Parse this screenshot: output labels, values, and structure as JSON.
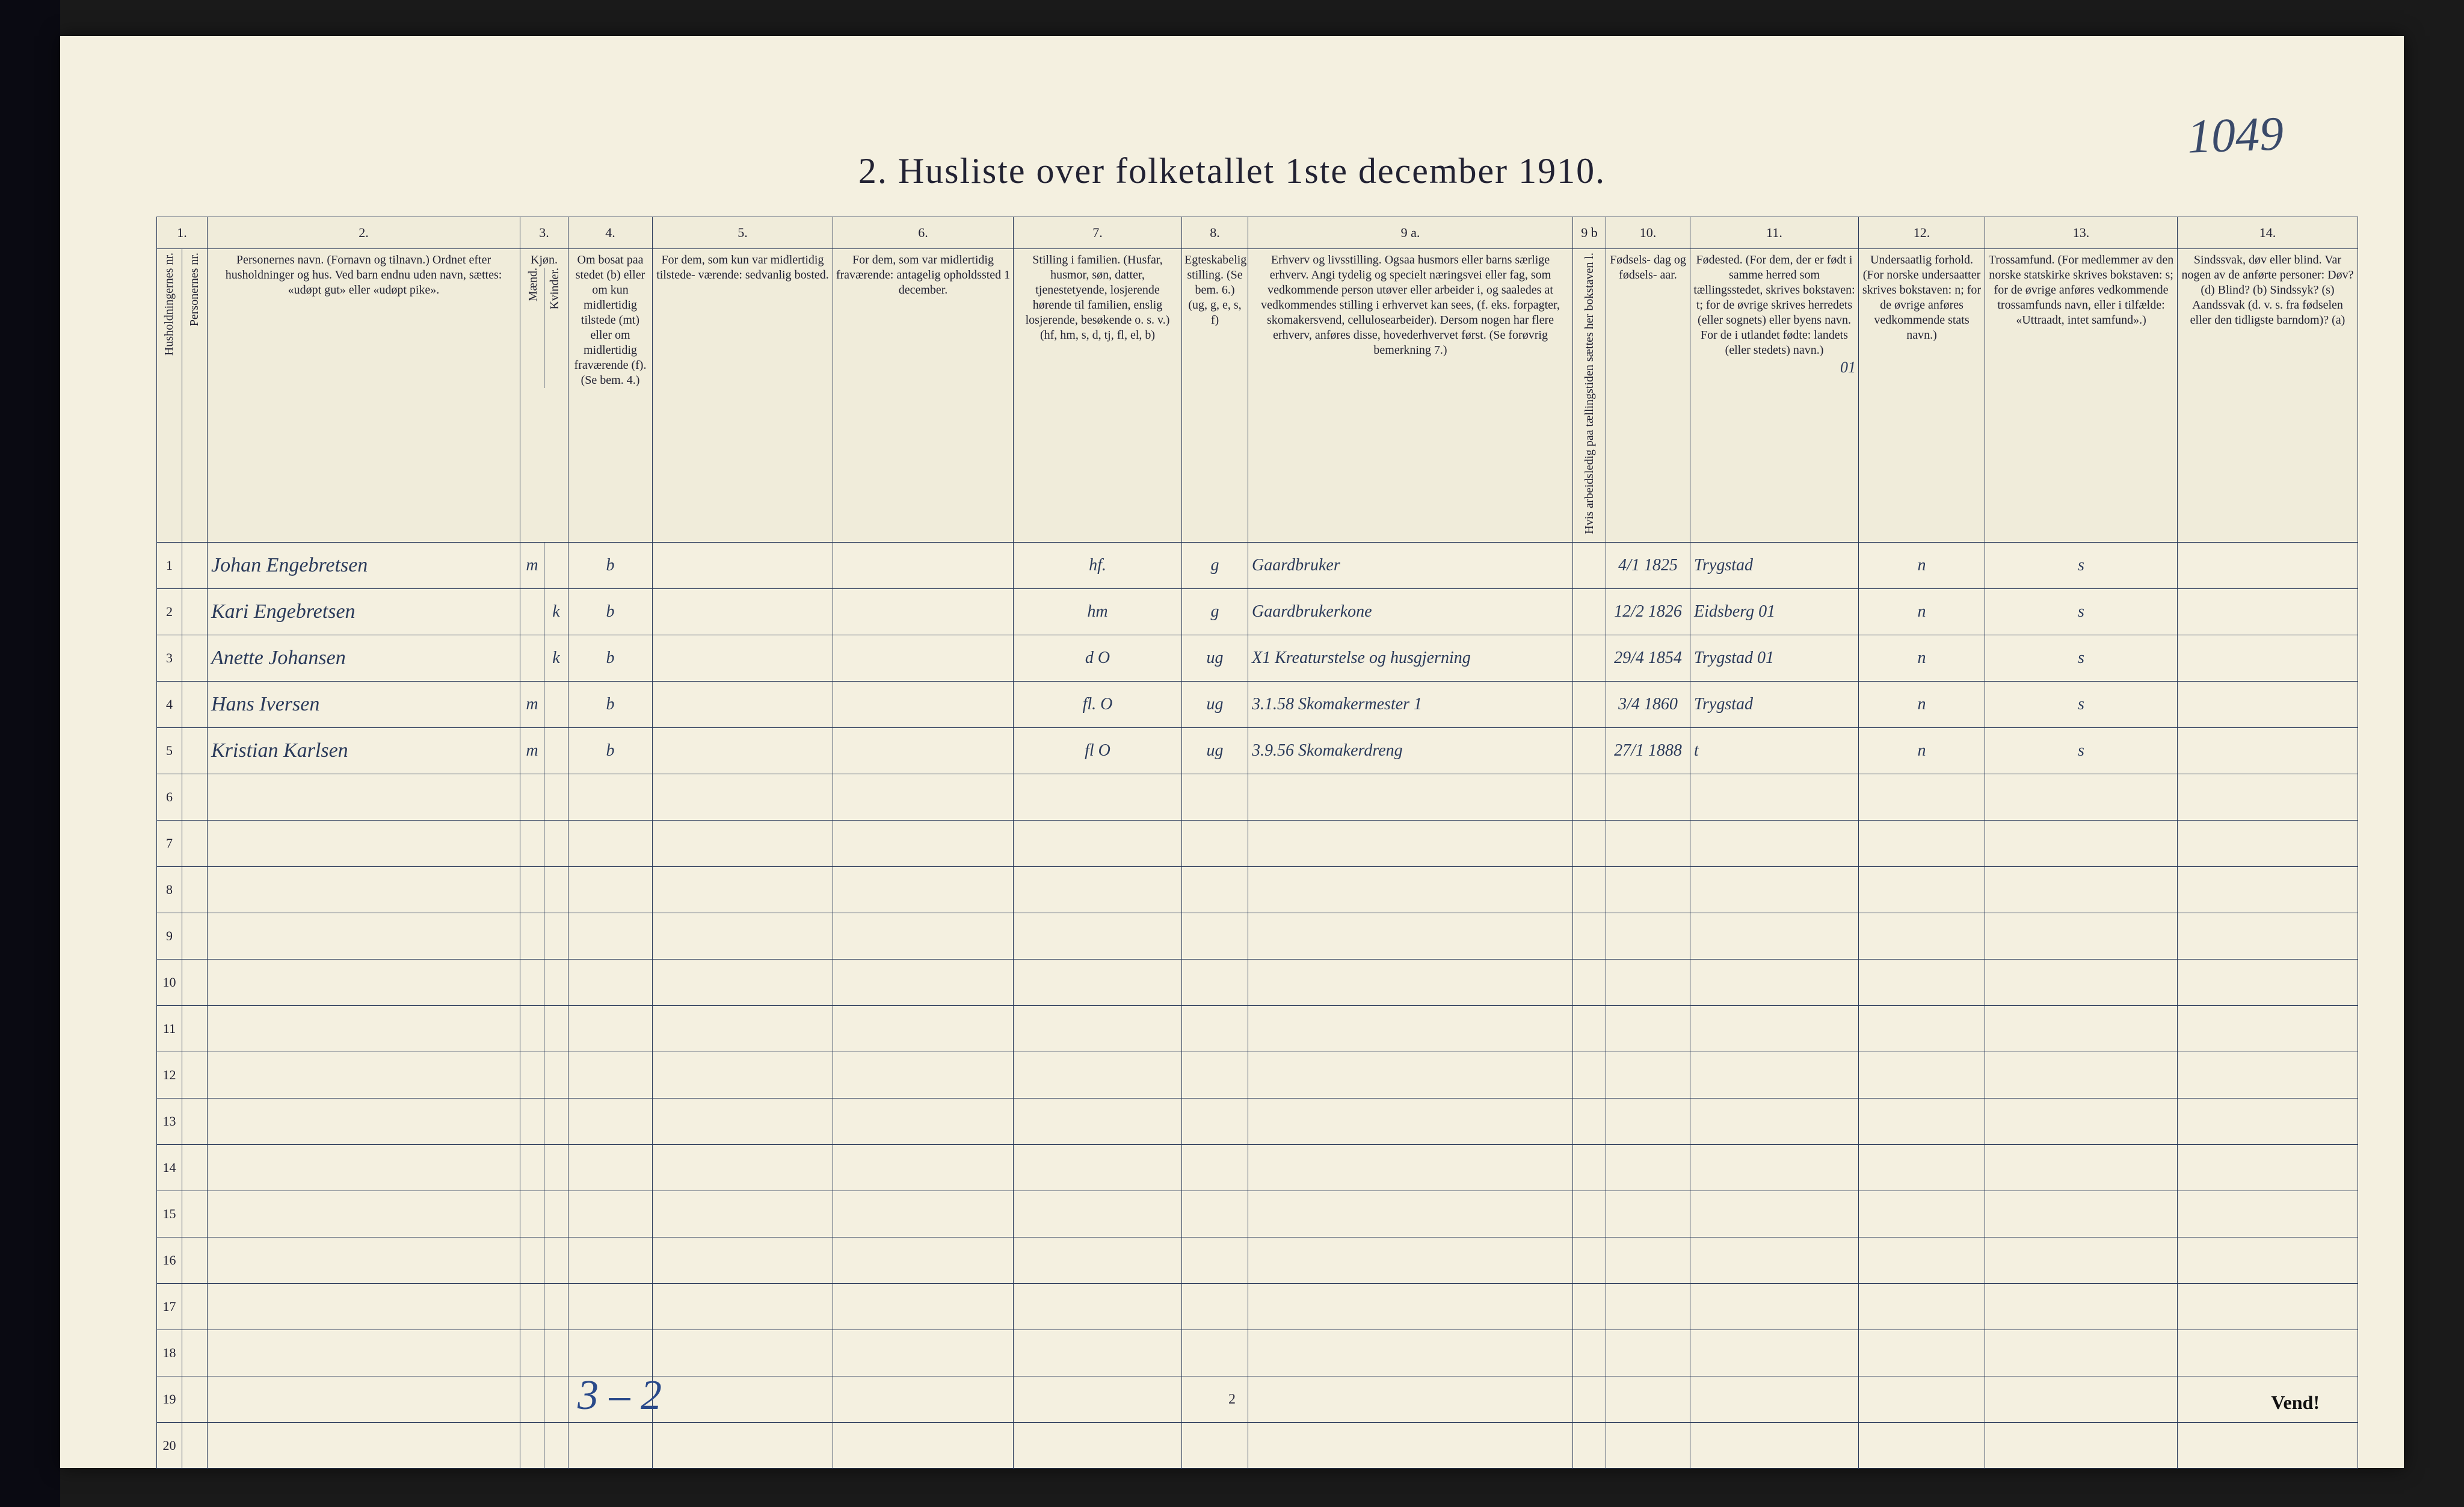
{
  "page_number_hand": "1049",
  "title": "2.  Husliste over folketallet 1ste december 1910.",
  "footer_hand": "3 – 2",
  "footer_pagenum": "2",
  "vend": "Vend!",
  "colors": {
    "paper": "#f4f0e0",
    "rule": "#2a3a5a",
    "ink_print": "#223344",
    "ink_hand": "#2a3a5a",
    "ink_hand_blue": "#2a4a8a",
    "outer_bg": "#1a1a1a"
  },
  "typography": {
    "title_fontsize_pt": 45,
    "header_fontsize_pt": 15,
    "body_hand_fontsize_pt": 26
  },
  "table": {
    "col_numbers": [
      "1.",
      "",
      "2.",
      "3.",
      "",
      "4.",
      "5.",
      "6.",
      "7.",
      "8.",
      "9 a.",
      "9 b",
      "10.",
      "11.",
      "12.",
      "13.",
      "14."
    ],
    "headers": {
      "hnr": "Husholdningernes nr.",
      "pnr": "Personernes nr.",
      "name": "Personernes navn.\n(Fornavn og tilnavn.)\nOrdnet efter husholdninger og hus.\nVed barn endnu uden navn, sættes: «udøpt gut» eller «udøpt pike».",
      "sex": "Kjøn.",
      "sex_m": "Mænd.",
      "sex_k": "Kvinder.",
      "bosat": "Om bosat paa stedet (b) eller om kun midlertidig tilstede (mt) eller om midlertidig fraværende (f). (Se bem. 4.)",
      "mt": "For dem, som kun var\nmidlertidig tilstede-\nværende:\nsedvanlig bosted.",
      "mf": "For dem, som var\nmidlertidig\nfraværende:\nantagelig opholdssted 1 december.",
      "stilling": "Stilling i familien.\n(Husfar, husmor, søn, datter, tjenestetyende, losjerende hørende til familien, enslig losjerende, besøkende o. s. v.)\n(hf, hm, s, d, tj, fl, el, b)",
      "egte": "Egteskabelig stilling.\n(Se bem. 6.)\n(ug, g, e, s, f)",
      "erhverv": "Erhverv og livsstilling.\nOgsaa husmors eller barns særlige erhverv.\nAngi tydelig og specielt næringsvei eller fag, som vedkommende person utøver eller arbeider i, og saaledes at vedkommendes stilling i erhvervet kan sees, (f. eks. forpagter, skomakersvend, cellulosearbeider). Dersom nogen har flere erhverv, anføres disse, hovederhvervet først.\n(Se forøvrig bemerkning 7.)",
      "b9b": "Hvis arbeidsledig paa tællingstiden sættes her bokstaven l.",
      "fdag": "Fødsels-\ndag\nog\nfødsels-\naar.",
      "fsted": "Fødested.\n(For dem, der er født i samme herred som tællingsstedet, skrives bokstaven: t; for de øvrige skrives herredets (eller sognets) eller byens navn. For de i utlandet fødte: landets (eller stedets) navn.)",
      "under": "Undersaatlig forhold.\n(For norske undersaatter skrives bokstaven: n; for de øvrige anføres vedkommende stats navn.)",
      "tros": "Trossamfund.\n(For medlemmer av den norske statskirke skrives bokstaven: s; for de øvrige anføres vedkommende trossamfunds navn, eller i tilfælde: «Uttraadt, intet samfund».)",
      "sind": "Sindssvak, døv eller blind.\nVar nogen av de anførte personer:\nDøv? (d)\nBlind? (b)\nSindssyk? (s)\nAandssvak (d. v. s. fra fødselen eller den tidligste barndom)? (a)"
    },
    "header_note_01": "01",
    "rows": [
      {
        "hnr": "1",
        "pnr": "",
        "name": "Johan Engebretsen",
        "sex_m": "m",
        "sex_k": "",
        "bosat": "b",
        "mt": "",
        "mf": "",
        "stilling": "hf.",
        "egte": "g",
        "erhverv": "Gaardbruker",
        "b9b": "",
        "fdag": "4/1 1825",
        "fsted": "Trygstad",
        "under": "n",
        "tros": "s",
        "sind": ""
      },
      {
        "hnr": "2",
        "pnr": "",
        "name": "Kari Engebretsen",
        "sex_m": "",
        "sex_k": "k",
        "bosat": "b",
        "mt": "",
        "mf": "",
        "stilling": "hm",
        "egte": "g",
        "erhverv": "Gaardbrukerkone",
        "b9b": "",
        "fdag": "12/2 1826",
        "fsted": "Eidsberg  01",
        "under": "n",
        "tros": "s",
        "sind": ""
      },
      {
        "hnr": "3",
        "pnr": "",
        "name": "Anette Johansen",
        "sex_m": "",
        "sex_k": "k",
        "bosat": "b",
        "mt": "",
        "mf": "",
        "stilling": "d    O",
        "egte": "ug",
        "erhverv": "X1 Kreaturstelse og husgjerning",
        "b9b": "",
        "fdag": "29/4 1854",
        "fsted": "Trygstad  01",
        "under": "n",
        "tros": "s",
        "sind": ""
      },
      {
        "hnr": "4",
        "pnr": "",
        "name": "Hans Iversen",
        "sex_m": "m",
        "sex_k": "",
        "bosat": "b",
        "mt": "",
        "mf": "",
        "stilling": "fl.   O",
        "egte": "ug",
        "erhverv": "3.1.58 Skomakermester 1",
        "b9b": "",
        "fdag": "3/4 1860",
        "fsted": "Trygstad",
        "under": "n",
        "tros": "s",
        "sind": ""
      },
      {
        "hnr": "5",
        "pnr": "",
        "name": "Kristian Karlsen",
        "sex_m": "m",
        "sex_k": "",
        "bosat": "b",
        "mt": "",
        "mf": "",
        "stilling": "fl    O",
        "egte": "ug",
        "erhverv": "3.9.56 Skomakerdreng",
        "b9b": "",
        "fdag": "27/1 1888",
        "fsted": "t",
        "under": "n",
        "tros": "s",
        "sind": ""
      },
      {
        "hnr": "6",
        "pnr": "",
        "name": "",
        "sex_m": "",
        "sex_k": "",
        "bosat": "",
        "mt": "",
        "mf": "",
        "stilling": "",
        "egte": "",
        "erhverv": "",
        "b9b": "",
        "fdag": "",
        "fsted": "",
        "under": "",
        "tros": "",
        "sind": ""
      },
      {
        "hnr": "7",
        "pnr": "",
        "name": "",
        "sex_m": "",
        "sex_k": "",
        "bosat": "",
        "mt": "",
        "mf": "",
        "stilling": "",
        "egte": "",
        "erhverv": "",
        "b9b": "",
        "fdag": "",
        "fsted": "",
        "under": "",
        "tros": "",
        "sind": ""
      },
      {
        "hnr": "8",
        "pnr": "",
        "name": "",
        "sex_m": "",
        "sex_k": "",
        "bosat": "",
        "mt": "",
        "mf": "",
        "stilling": "",
        "egte": "",
        "erhverv": "",
        "b9b": "",
        "fdag": "",
        "fsted": "",
        "under": "",
        "tros": "",
        "sind": ""
      },
      {
        "hnr": "9",
        "pnr": "",
        "name": "",
        "sex_m": "",
        "sex_k": "",
        "bosat": "",
        "mt": "",
        "mf": "",
        "stilling": "",
        "egte": "",
        "erhverv": "",
        "b9b": "",
        "fdag": "",
        "fsted": "",
        "under": "",
        "tros": "",
        "sind": ""
      },
      {
        "hnr": "10",
        "pnr": "",
        "name": "",
        "sex_m": "",
        "sex_k": "",
        "bosat": "",
        "mt": "",
        "mf": "",
        "stilling": "",
        "egte": "",
        "erhverv": "",
        "b9b": "",
        "fdag": "",
        "fsted": "",
        "under": "",
        "tros": "",
        "sind": ""
      },
      {
        "hnr": "11",
        "pnr": "",
        "name": "",
        "sex_m": "",
        "sex_k": "",
        "bosat": "",
        "mt": "",
        "mf": "",
        "stilling": "",
        "egte": "",
        "erhverv": "",
        "b9b": "",
        "fdag": "",
        "fsted": "",
        "under": "",
        "tros": "",
        "sind": ""
      },
      {
        "hnr": "12",
        "pnr": "",
        "name": "",
        "sex_m": "",
        "sex_k": "",
        "bosat": "",
        "mt": "",
        "mf": "",
        "stilling": "",
        "egte": "",
        "erhverv": "",
        "b9b": "",
        "fdag": "",
        "fsted": "",
        "under": "",
        "tros": "",
        "sind": ""
      },
      {
        "hnr": "13",
        "pnr": "",
        "name": "",
        "sex_m": "",
        "sex_k": "",
        "bosat": "",
        "mt": "",
        "mf": "",
        "stilling": "",
        "egte": "",
        "erhverv": "",
        "b9b": "",
        "fdag": "",
        "fsted": "",
        "under": "",
        "tros": "",
        "sind": ""
      },
      {
        "hnr": "14",
        "pnr": "",
        "name": "",
        "sex_m": "",
        "sex_k": "",
        "bosat": "",
        "mt": "",
        "mf": "",
        "stilling": "",
        "egte": "",
        "erhverv": "",
        "b9b": "",
        "fdag": "",
        "fsted": "",
        "under": "",
        "tros": "",
        "sind": ""
      },
      {
        "hnr": "15",
        "pnr": "",
        "name": "",
        "sex_m": "",
        "sex_k": "",
        "bosat": "",
        "mt": "",
        "mf": "",
        "stilling": "",
        "egte": "",
        "erhverv": "",
        "b9b": "",
        "fdag": "",
        "fsted": "",
        "under": "",
        "tros": "",
        "sind": ""
      },
      {
        "hnr": "16",
        "pnr": "",
        "name": "",
        "sex_m": "",
        "sex_k": "",
        "bosat": "",
        "mt": "",
        "mf": "",
        "stilling": "",
        "egte": "",
        "erhverv": "",
        "b9b": "",
        "fdag": "",
        "fsted": "",
        "under": "",
        "tros": "",
        "sind": ""
      },
      {
        "hnr": "17",
        "pnr": "",
        "name": "",
        "sex_m": "",
        "sex_k": "",
        "bosat": "",
        "mt": "",
        "mf": "",
        "stilling": "",
        "egte": "",
        "erhverv": "",
        "b9b": "",
        "fdag": "",
        "fsted": "",
        "under": "",
        "tros": "",
        "sind": ""
      },
      {
        "hnr": "18",
        "pnr": "",
        "name": "",
        "sex_m": "",
        "sex_k": "",
        "bosat": "",
        "mt": "",
        "mf": "",
        "stilling": "",
        "egte": "",
        "erhverv": "",
        "b9b": "",
        "fdag": "",
        "fsted": "",
        "under": "",
        "tros": "",
        "sind": ""
      },
      {
        "hnr": "19",
        "pnr": "",
        "name": "",
        "sex_m": "",
        "sex_k": "",
        "bosat": "",
        "mt": "",
        "mf": "",
        "stilling": "",
        "egte": "",
        "erhverv": "",
        "b9b": "",
        "fdag": "",
        "fsted": "",
        "under": "",
        "tros": "",
        "sind": ""
      },
      {
        "hnr": "20",
        "pnr": "",
        "name": "",
        "sex_m": "",
        "sex_k": "",
        "bosat": "",
        "mt": "",
        "mf": "",
        "stilling": "",
        "egte": "",
        "erhverv": "",
        "b9b": "",
        "fdag": "",
        "fsted": "",
        "under": "",
        "tros": "",
        "sind": ""
      }
    ]
  }
}
